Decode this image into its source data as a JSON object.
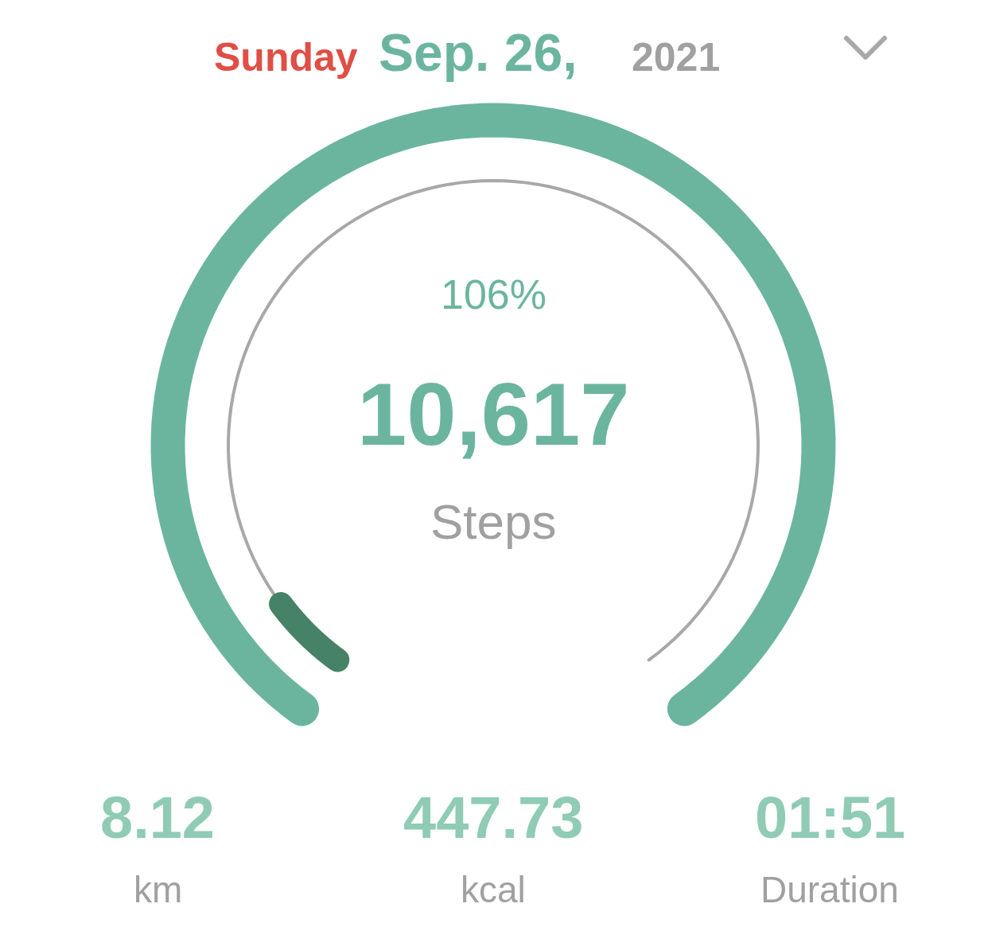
{
  "chart_data": {
    "type": "other",
    "title": "Sunday Sep. 26, 2021",
    "values": [
      106
    ],
    "value_labels": [
      "106%"
    ],
    "color": "#6bb59f",
    "annotations": [
      "10,617",
      "Steps",
      "8.12",
      "km",
      "447.73",
      "kcal",
      "01:51",
      "Duration"
    ]
  }
}
